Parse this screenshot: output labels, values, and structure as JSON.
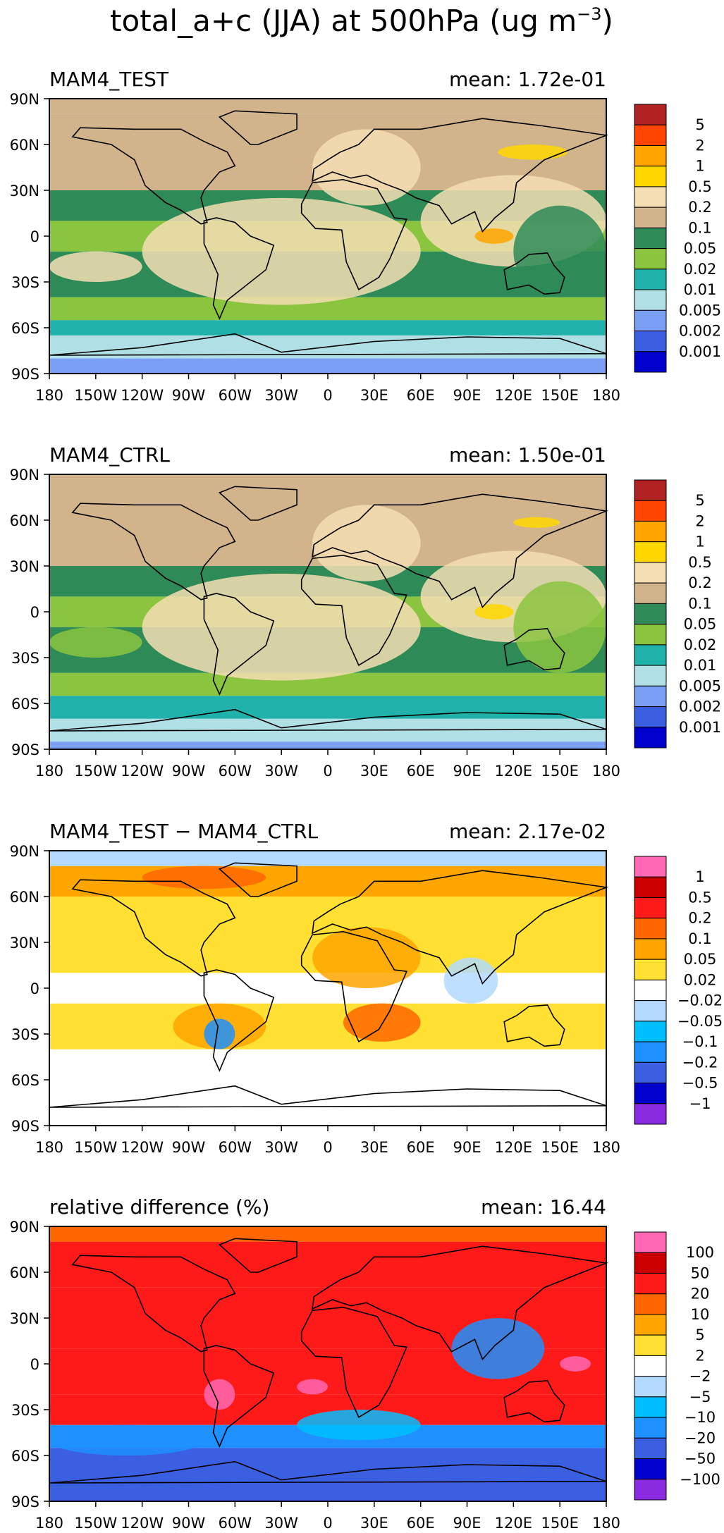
{
  "figure": {
    "title_main": "total_a+c (JJA) at 500hPa (ug m",
    "title_sup": "−3",
    "title_end": ")"
  },
  "axes": {
    "lat_ticks": [
      "90N",
      "60N",
      "30N",
      "0",
      "30S",
      "60S",
      "90S"
    ],
    "lon_ticks": [
      "180",
      "150W",
      "120W",
      "90W",
      "60W",
      "30W",
      "0",
      "30E",
      "60E",
      "90E",
      "120E",
      "150E",
      "180"
    ]
  },
  "chart_data": [
    {
      "type": "heatmap",
      "title": "MAM4_TEST",
      "mean_label": "mean:  1.72e-01",
      "xlim": [
        -180,
        180
      ],
      "ylim": [
        -90,
        90
      ],
      "colorbar": {
        "labels": [
          "5",
          "2",
          "1",
          "0.5",
          "0.2",
          "0.1",
          "0.05",
          "0.02",
          "0.01",
          "0.005",
          "0.002",
          "0.001"
        ],
        "colors": [
          "#b22222",
          "#ff4500",
          "#ffa500",
          "#ffd700",
          "#f5deb3",
          "#d2b48c",
          "#2e8b57",
          "#8bc43f",
          "#20b2aa",
          "#b0e0e6",
          "#7b9ff5",
          "#3a5fe0",
          "#0000cd"
        ]
      },
      "bands": [
        {
          "lat": [
            -90,
            -80
          ],
          "color": "#7b9ff5"
        },
        {
          "lat": [
            -80,
            -65
          ],
          "color": "#b0e0e6"
        },
        {
          "lat": [
            -65,
            -55
          ],
          "color": "#20b2aa"
        },
        {
          "lat": [
            -55,
            -40
          ],
          "color": "#8bc43f"
        },
        {
          "lat": [
            -40,
            -10
          ],
          "color": "#2e8b57"
        },
        {
          "lat": [
            -10,
            10
          ],
          "color": "#8bc43f"
        },
        {
          "lat": [
            10,
            30
          ],
          "color": "#2e8b57"
        },
        {
          "lat": [
            30,
            80
          ],
          "color": "#d2b48c"
        },
        {
          "lat": [
            80,
            90
          ],
          "color": "#d2b48c"
        }
      ],
      "patches": [
        {
          "lon": [
            -120,
            60
          ],
          "lat": [
            -45,
            25
          ],
          "color": "#f5deb3"
        },
        {
          "lon": [
            60,
            180
          ],
          "lat": [
            -20,
            40
          ],
          "color": "#f5deb3"
        },
        {
          "lon": [
            -10,
            60
          ],
          "lat": [
            20,
            70
          ],
          "color": "#f5deb3"
        },
        {
          "lon": [
            120,
            180
          ],
          "lat": [
            -40,
            20
          ],
          "color": "#2e8b57"
        },
        {
          "lon": [
            -180,
            -120
          ],
          "lat": [
            -30,
            -10
          ],
          "color": "#f5deb3"
        },
        {
          "lon": [
            110,
            155
          ],
          "lat": [
            50,
            60
          ],
          "color": "#ffd700"
        },
        {
          "lon": [
            95,
            120
          ],
          "lat": [
            -5,
            5
          ],
          "color": "#ffa500"
        }
      ]
    },
    {
      "type": "heatmap",
      "title": "MAM4_CTRL",
      "mean_label": "mean:  1.50e-01",
      "xlim": [
        -180,
        180
      ],
      "ylim": [
        -90,
        90
      ],
      "colorbar": {
        "labels": [
          "5",
          "2",
          "1",
          "0.5",
          "0.2",
          "0.1",
          "0.05",
          "0.02",
          "0.01",
          "0.005",
          "0.002",
          "0.001"
        ],
        "colors": [
          "#b22222",
          "#ff4500",
          "#ffa500",
          "#ffd700",
          "#f5deb3",
          "#d2b48c",
          "#2e8b57",
          "#8bc43f",
          "#20b2aa",
          "#b0e0e6",
          "#7b9ff5",
          "#3a5fe0",
          "#0000cd"
        ]
      },
      "bands": [
        {
          "lat": [
            -90,
            -85
          ],
          "color": "#7b9ff5"
        },
        {
          "lat": [
            -85,
            -70
          ],
          "color": "#b0e0e6"
        },
        {
          "lat": [
            -70,
            -55
          ],
          "color": "#20b2aa"
        },
        {
          "lat": [
            -55,
            -40
          ],
          "color": "#8bc43f"
        },
        {
          "lat": [
            -40,
            -10
          ],
          "color": "#2e8b57"
        },
        {
          "lat": [
            -10,
            10
          ],
          "color": "#8bc43f"
        },
        {
          "lat": [
            10,
            30
          ],
          "color": "#2e8b57"
        },
        {
          "lat": [
            30,
            90
          ],
          "color": "#d2b48c"
        }
      ],
      "patches": [
        {
          "lon": [
            -120,
            60
          ],
          "lat": [
            -45,
            25
          ],
          "color": "#f5deb3"
        },
        {
          "lon": [
            60,
            180
          ],
          "lat": [
            -20,
            40
          ],
          "color": "#f5deb3"
        },
        {
          "lon": [
            -10,
            60
          ],
          "lat": [
            20,
            70
          ],
          "color": "#f5deb3"
        },
        {
          "lon": [
            120,
            180
          ],
          "lat": [
            -40,
            20
          ],
          "color": "#8bc43f"
        },
        {
          "lon": [
            -180,
            -120
          ],
          "lat": [
            -30,
            -10
          ],
          "color": "#8bc43f"
        },
        {
          "lon": [
            120,
            150
          ],
          "lat": [
            55,
            62
          ],
          "color": "#ffd700"
        },
        {
          "lon": [
            95,
            120
          ],
          "lat": [
            -5,
            5
          ],
          "color": "#ffd700"
        }
      ]
    },
    {
      "type": "heatmap",
      "title": "MAM4_TEST − MAM4_CTRL",
      "mean_label": "mean:  2.17e-02",
      "xlim": [
        -180,
        180
      ],
      "ylim": [
        -90,
        90
      ],
      "colorbar": {
        "labels": [
          "1",
          "0.5",
          "0.2",
          "0.1",
          "0.05",
          "0.02",
          "−0.02",
          "−0.05",
          "−0.1",
          "−0.2",
          "−0.5",
          "−1"
        ],
        "colors": [
          "#ff69b4",
          "#cc0000",
          "#ff1a1a",
          "#ff6600",
          "#ffa500",
          "#ffe033",
          "#ffffff",
          "#b3d9ff",
          "#00bfff",
          "#1e90ff",
          "#3a5fe0",
          "#0000cd",
          "#8a2be2"
        ]
      },
      "bands": [
        {
          "lat": [
            -90,
            -40
          ],
          "color": "#ffffff"
        },
        {
          "lat": [
            -40,
            -10
          ],
          "color": "#ffe033"
        },
        {
          "lat": [
            -10,
            10
          ],
          "color": "#ffffff"
        },
        {
          "lat": [
            10,
            60
          ],
          "color": "#ffe033"
        },
        {
          "lat": [
            60,
            80
          ],
          "color": "#ffa500"
        },
        {
          "lat": [
            80,
            90
          ],
          "color": "#b3d9ff"
        }
      ],
      "patches": [
        {
          "lon": [
            -100,
            -40
          ],
          "lat": [
            -40,
            -10
          ],
          "color": "#ffa500"
        },
        {
          "lon": [
            10,
            60
          ],
          "lat": [
            -35,
            -10
          ],
          "color": "#ff6600"
        },
        {
          "lon": [
            -10,
            60
          ],
          "lat": [
            0,
            40
          ],
          "color": "#ffa500"
        },
        {
          "lon": [
            75,
            110
          ],
          "lat": [
            -10,
            20
          ],
          "color": "#b3d9ff"
        },
        {
          "lon": [
            -120,
            -40
          ],
          "lat": [
            65,
            80
          ],
          "color": "#ff6600"
        },
        {
          "lon": [
            -80,
            -60
          ],
          "lat": [
            -40,
            -20
          ],
          "color": "#1e90ff"
        }
      ]
    },
    {
      "type": "heatmap",
      "title": "relative difference (%)",
      "mean_label": "mean:  16.44",
      "xlim": [
        -180,
        180
      ],
      "ylim": [
        -90,
        90
      ],
      "colorbar": {
        "labels": [
          "100",
          "50",
          "20",
          "10",
          "5",
          "2",
          "−2",
          "−5",
          "−10",
          "−20",
          "−50",
          "−100"
        ],
        "colors": [
          "#ff69b4",
          "#cc0000",
          "#ff1a1a",
          "#ff6600",
          "#ffa500",
          "#ffe033",
          "#ffffff",
          "#b3d9ff",
          "#00bfff",
          "#1e90ff",
          "#3a5fe0",
          "#0000cd",
          "#8a2be2"
        ]
      },
      "bands": [
        {
          "lat": [
            -90,
            -55
          ],
          "color": "#3a5fe0"
        },
        {
          "lat": [
            -55,
            -40
          ],
          "color": "#1e90ff"
        },
        {
          "lat": [
            -40,
            -20
          ],
          "color": "#ff1a1a"
        },
        {
          "lat": [
            -20,
            10
          ],
          "color": "#ff1a1a"
        },
        {
          "lat": [
            10,
            50
          ],
          "color": "#ff1a1a"
        },
        {
          "lat": [
            50,
            80
          ],
          "color": "#ff1a1a"
        },
        {
          "lat": [
            80,
            90
          ],
          "color": "#ff6600"
        }
      ],
      "patches": [
        {
          "lon": [
            -80,
            -60
          ],
          "lat": [
            -30,
            -10
          ],
          "color": "#ff69b4"
        },
        {
          "lon": [
            -20,
            0
          ],
          "lat": [
            -20,
            -10
          ],
          "color": "#ff69b4"
        },
        {
          "lon": [
            150,
            170
          ],
          "lat": [
            -5,
            5
          ],
          "color": "#ff69b4"
        },
        {
          "lon": [
            80,
            140
          ],
          "lat": [
            -10,
            30
          ],
          "color": "#1e90ff"
        },
        {
          "lon": [
            -180,
            -80
          ],
          "lat": [
            -60,
            -40
          ],
          "color": "#1e90ff"
        },
        {
          "lon": [
            -20,
            60
          ],
          "lat": [
            -50,
            -30
          ],
          "color": "#00bfff"
        }
      ]
    }
  ]
}
